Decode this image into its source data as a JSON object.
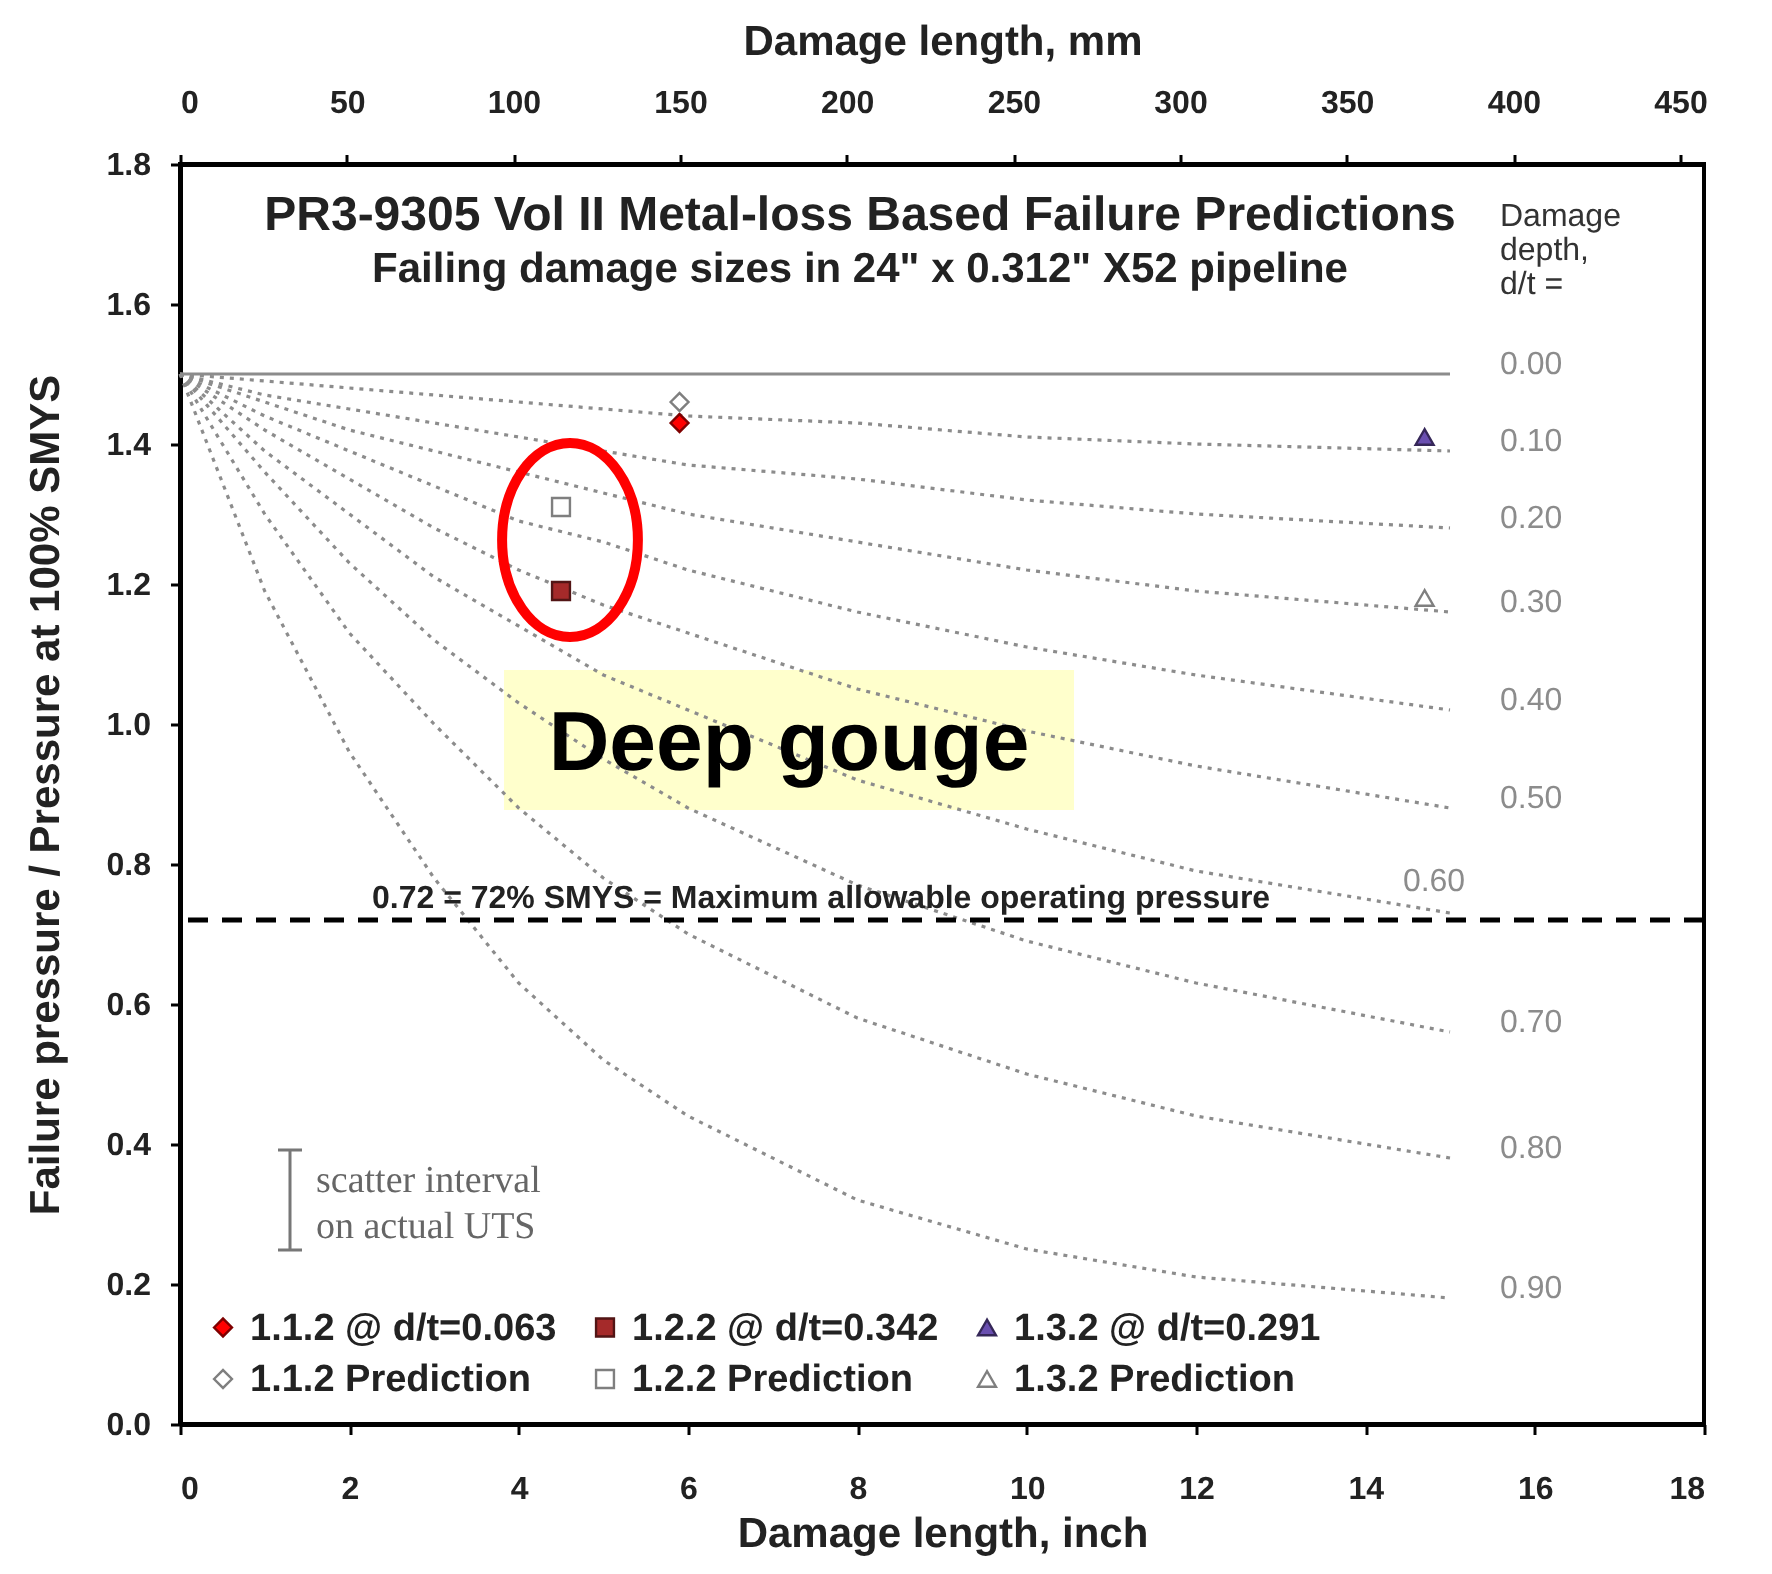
{
  "chart_data": {
    "type": "line",
    "title": "PR3-9305 Vol II Metal-loss Based Failure Predictions",
    "subtitle": "Failing damage sizes in 24\" x 0.312\" X52 pipeline",
    "xlabel": "Damage length, inch",
    "x2label": "Damage length, mm",
    "ylabel": "Failure pressure / Pressure at 100% SMYS",
    "xlim": [
      0,
      18
    ],
    "xticks": [
      0,
      2,
      4,
      6,
      8,
      10,
      12,
      14,
      16,
      18
    ],
    "x2lim": [
      0,
      457.2
    ],
    "x2ticks": [
      0,
      50,
      100,
      150,
      200,
      250,
      300,
      350,
      400,
      450
    ],
    "ylim": [
      0,
      1.8
    ],
    "yticks": [
      {
        "value": 0,
        "label": "0.0"
      },
      0.2,
      0.4,
      0.6,
      0.8,
      {
        "value": 1,
        "label": "1.0"
      },
      1.2,
      1.4,
      1.6,
      1.8
    ],
    "grid": false,
    "legend": "bottom left",
    "x": [
      0,
      1,
      2,
      3,
      4,
      5,
      6,
      8,
      10,
      12,
      15
    ],
    "series": [
      {
        "name": "0.00",
        "color": "#8c8c8c",
        "line_style": "solid",
        "values": [
          1.5,
          1.5,
          1.5,
          1.5,
          1.5,
          1.5,
          1.5,
          1.5,
          1.5,
          1.5,
          1.5
        ]
      },
      {
        "name": "0.10",
        "color": "#8c8c8c",
        "line_style": "dotted",
        "values": [
          1.5,
          1.49,
          1.48,
          1.47,
          1.46,
          1.45,
          1.44,
          1.43,
          1.41,
          1.4,
          1.39
        ]
      },
      {
        "name": "0.20",
        "color": "#8c8c8c",
        "line_style": "dotted",
        "values": [
          1.5,
          1.47,
          1.45,
          1.43,
          1.41,
          1.39,
          1.37,
          1.35,
          1.32,
          1.3,
          1.28
        ]
      },
      {
        "name": "0.30",
        "color": "#8c8c8c",
        "line_style": "dotted",
        "values": [
          1.5,
          1.46,
          1.42,
          1.39,
          1.36,
          1.33,
          1.3,
          1.26,
          1.22,
          1.19,
          1.16
        ]
      },
      {
        "name": "0.40",
        "color": "#8c8c8c",
        "line_style": "dotted",
        "values": [
          1.5,
          1.44,
          1.39,
          1.34,
          1.29,
          1.26,
          1.22,
          1.16,
          1.11,
          1.07,
          1.02
        ]
      },
      {
        "name": "0.50",
        "color": "#8c8c8c",
        "line_style": "dotted",
        "values": [
          1.5,
          1.42,
          1.35,
          1.28,
          1.22,
          1.17,
          1.13,
          1.05,
          0.99,
          0.94,
          0.88
        ]
      },
      {
        "name": "0.60",
        "color": "#8c8c8c",
        "line_style": "dotted",
        "values": [
          1.5,
          1.39,
          1.3,
          1.21,
          1.14,
          1.07,
          1.02,
          0.92,
          0.85,
          0.79,
          0.73
        ]
      },
      {
        "name": "0.70",
        "color": "#8c8c8c",
        "line_style": "dotted",
        "values": [
          1.5,
          1.36,
          1.23,
          1.12,
          1.03,
          0.95,
          0.88,
          0.77,
          0.69,
          0.63,
          0.56
        ]
      },
      {
        "name": "0.80",
        "color": "#8c8c8c",
        "line_style": "dotted",
        "values": [
          1.5,
          1.3,
          1.13,
          1.0,
          0.88,
          0.78,
          0.7,
          0.58,
          0.5,
          0.44,
          0.38
        ]
      },
      {
        "name": "0.90",
        "color": "#8c8c8c",
        "line_style": "dotted",
        "values": [
          1.5,
          1.19,
          0.96,
          0.78,
          0.63,
          0.52,
          0.44,
          0.32,
          0.25,
          0.21,
          0.18
        ]
      },
      {
        "name": "1.1.2 @ d/t=0.063",
        "type": "scatter",
        "marker": "diamond",
        "color": "#ff0000",
        "x": [
          5.9
        ],
        "values": [
          1.43
        ]
      },
      {
        "name": "1.2.2 @ d/t=0.342",
        "type": "scatter",
        "marker": "square",
        "color": "#a52a2a",
        "x": [
          4.5
        ],
        "values": [
          1.19
        ]
      },
      {
        "name": "1.3.2 @ d/t=0.291",
        "type": "scatter",
        "marker": "triangle",
        "color": "#6a4fb0",
        "x": [
          14.7
        ],
        "values": [
          1.41
        ]
      },
      {
        "name": "1.1.2 Prediction",
        "type": "scatter",
        "marker": "diamond",
        "color": "#ffffff",
        "x": [
          5.9
        ],
        "values": [
          1.46
        ]
      },
      {
        "name": "1.2.2 Prediction",
        "type": "scatter",
        "marker": "square",
        "color": "#ffffff",
        "x": [
          4.5
        ],
        "values": [
          1.31
        ]
      },
      {
        "name": "1.3.2 Prediction",
        "type": "scatter",
        "marker": "triangle",
        "color": "#ffffff",
        "x": [
          14.7
        ],
        "values": [
          1.18
        ]
      }
    ],
    "ref_lines": [
      {
        "axis": "y",
        "value": 0.72,
        "label": "0.72 = 72% SMYS = Maximum  allowable operating pressure",
        "color": "#000000",
        "line_style": "dashed"
      }
    ],
    "annotations": [
      "Damage depth, d/t =",
      "Deep gouge",
      "scatter interval on actual UTS"
    ]
  }
}
